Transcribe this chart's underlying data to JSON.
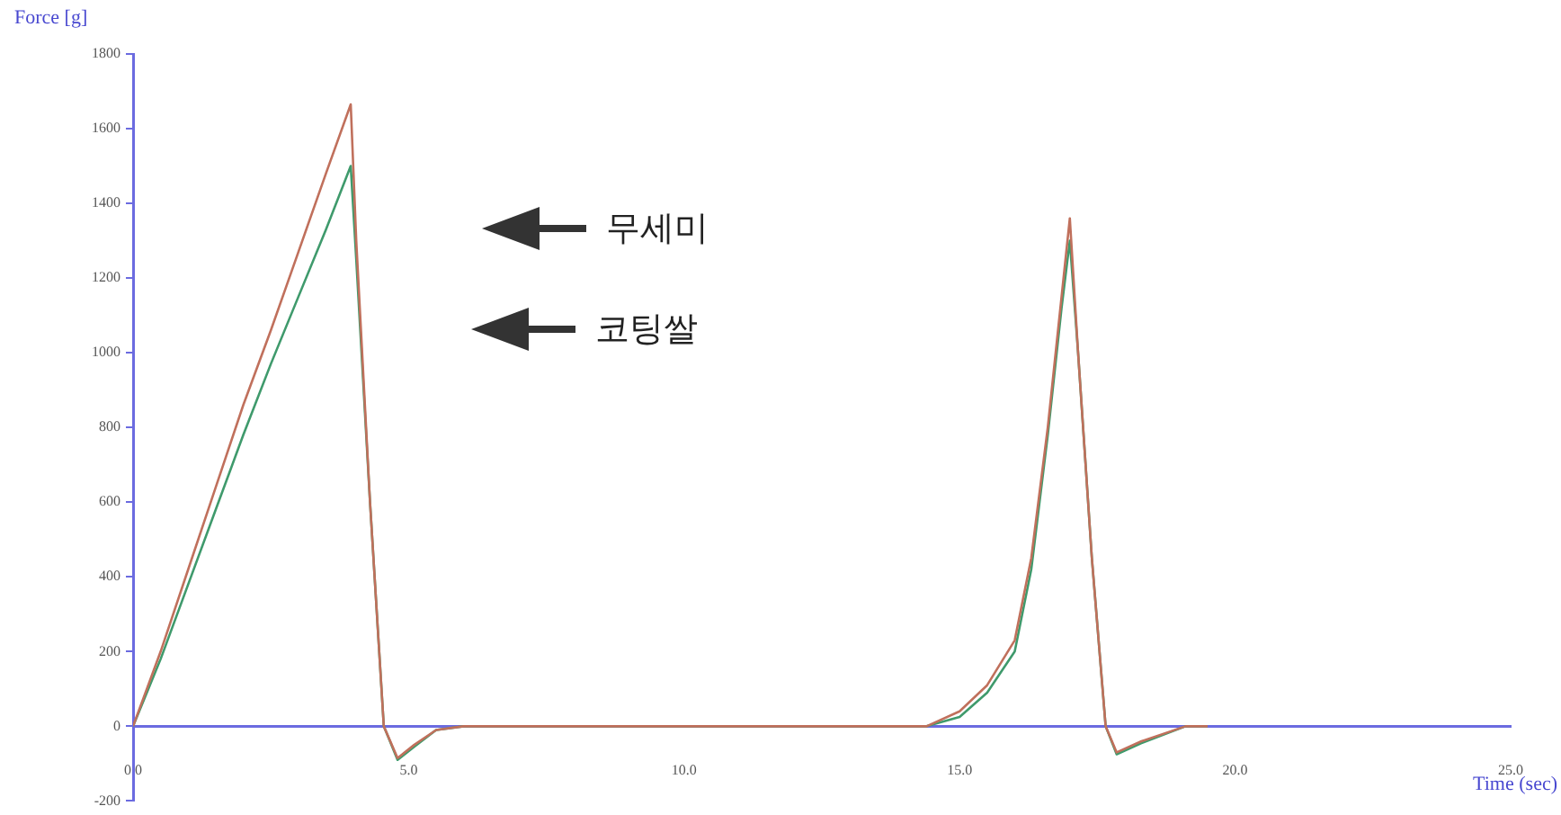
{
  "chart_data": {
    "type": "line",
    "xlabel": "Time (sec)",
    "ylabel": "Force [g]",
    "annotations": [
      "무세미",
      "코팅쌀"
    ],
    "xlim": [
      0,
      25
    ],
    "xticks": [
      {
        "value": 0,
        "label": "0.0"
      },
      {
        "value": 5,
        "label": "5.0"
      },
      {
        "value": 10,
        "label": "10.0"
      },
      {
        "value": 15,
        "label": "15.0"
      },
      {
        "value": 20,
        "label": "20.0"
      },
      {
        "value": 25,
        "label": "25.0"
      }
    ],
    "ylim": [
      -200,
      1800
    ],
    "yticks": [
      -200,
      0,
      200,
      400,
      600,
      800,
      1000,
      1200,
      1400,
      1600,
      1800
    ],
    "grid": false,
    "legend": false,
    "marker": "none",
    "line_style": "solid",
    "series": [
      {
        "color": "#c0705c",
        "x": [
          0,
          0.5,
          1,
          1.5,
          2,
          2.5,
          3,
          3.5,
          3.95,
          4.05,
          4.3,
          4.55,
          4.8,
          5.1,
          5.5,
          6,
          10,
          14.4,
          15,
          15.5,
          16,
          16.3,
          16.6,
          16.85,
          17.0,
          17.15,
          17.4,
          17.65,
          17.85,
          18.3,
          19.1,
          19.5
        ],
        "values": [
          0,
          200,
          420,
          640,
          860,
          1060,
          1270,
          1480,
          1665,
          1300,
          600,
          0,
          -85,
          -50,
          -10,
          0,
          0,
          0,
          40,
          110,
          230,
          450,
          800,
          1150,
          1360,
          1000,
          450,
          0,
          -70,
          -40,
          0,
          0
        ]
      },
      {
        "color": "#3f9a6c",
        "x": [
          0,
          0.5,
          1,
          1.5,
          2,
          2.5,
          3,
          3.5,
          3.95,
          4.05,
          4.3,
          4.55,
          4.8,
          5.1,
          5.5,
          6,
          10,
          14.4,
          15,
          15.5,
          16,
          16.3,
          16.6,
          16.85,
          17.0,
          17.15,
          17.4,
          17.65,
          17.85,
          18.3,
          19.1,
          19.5
        ],
        "values": [
          0,
          180,
          380,
          580,
          780,
          970,
          1150,
          1330,
          1500,
          1250,
          600,
          0,
          -90,
          -55,
          -10,
          0,
          0,
          0,
          25,
          90,
          200,
          420,
          780,
          1120,
          1300,
          1000,
          450,
          0,
          -75,
          -45,
          0,
          0
        ]
      }
    ]
  }
}
